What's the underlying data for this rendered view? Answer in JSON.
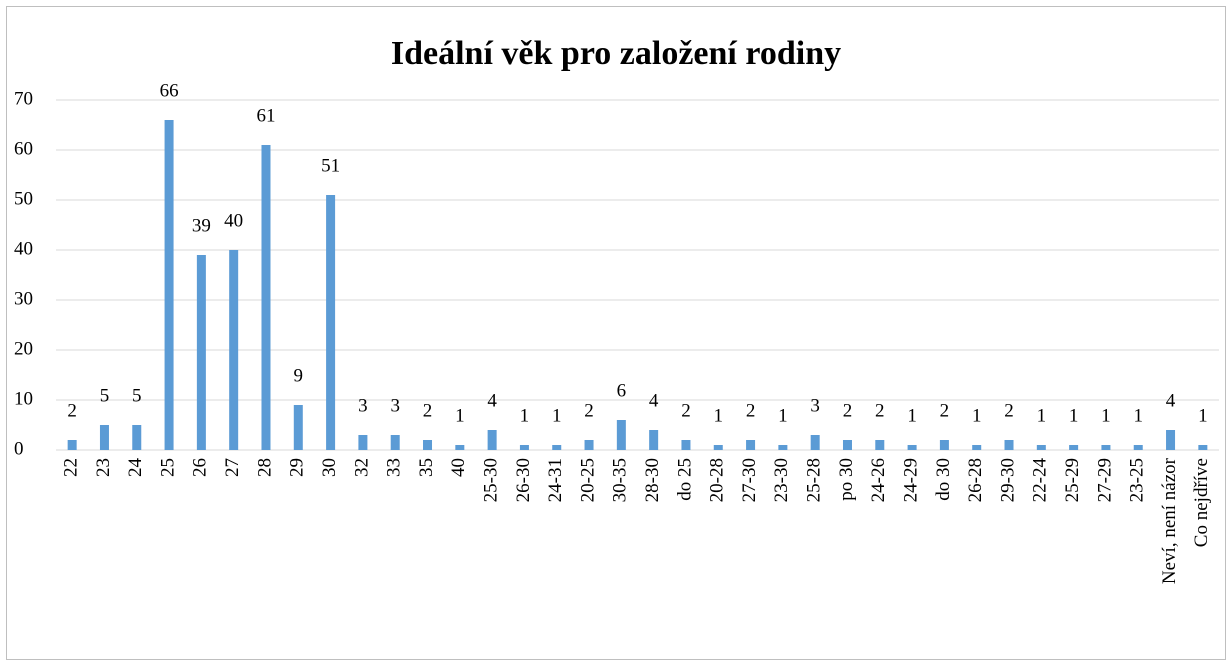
{
  "chart_data": {
    "type": "bar",
    "title": "Ideální věk pro založení rodiny",
    "categories": [
      "22",
      "23",
      "24",
      "25",
      "26",
      "27",
      "28",
      "29",
      "30",
      "32",
      "33",
      "35",
      "40",
      "25-30",
      "26-30",
      "24-31",
      "20-25",
      "30-35",
      "28-30",
      "do 25",
      "20-28",
      "27-30",
      "23-30",
      "25-28",
      "po 30",
      "24-26",
      "24-29",
      "do 30",
      "26-28",
      "29-30",
      "22-24",
      "25-29",
      "27-29",
      "23-25",
      "Neví, není názor",
      "Co nejdříve"
    ],
    "values": [
      2,
      5,
      5,
      66,
      39,
      40,
      61,
      9,
      51,
      3,
      3,
      2,
      1,
      4,
      1,
      1,
      2,
      6,
      4,
      2,
      1,
      2,
      1,
      3,
      2,
      2,
      1,
      2,
      1,
      2,
      1,
      1,
      1,
      1,
      4,
      1
    ],
    "color": "#5b9bd5",
    "ylim": [
      0,
      70
    ],
    "yticks": [
      0,
      10,
      20,
      30,
      40,
      50,
      60,
      70
    ],
    "grid": true
  }
}
